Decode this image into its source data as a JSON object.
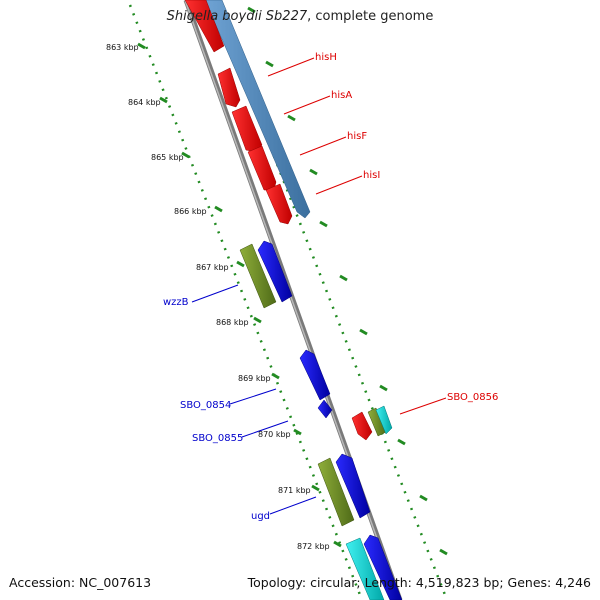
{
  "title": {
    "organism": "Shigella boydii Sb227",
    "suffix": ", complete genome"
  },
  "footer": {
    "accession": "Accession: NC_007613",
    "topology": "Topology: circular; Length: 4,519,823 bp; Genes: 4,246"
  },
  "ruler": {
    "ticks": [
      "863 kbp",
      "864 kbp",
      "865 kbp",
      "866 kbp",
      "867 kbp",
      "868 kbp",
      "869 kbp",
      "870 kbp",
      "871 kbp",
      "872 kbp"
    ]
  },
  "genes": {
    "forward": [
      {
        "label": "hisH",
        "color": "#ff0000"
      },
      {
        "label": "hisA",
        "color": "#ff0000"
      },
      {
        "label": "hisF",
        "color": "#ff0000"
      },
      {
        "label": "hisI",
        "color": "#ff0000"
      },
      {
        "label": "SBO_0856",
        "color": "#ff0000"
      }
    ],
    "reverse": [
      {
        "label": "wzzB",
        "color": "#0000cc"
      },
      {
        "label": "SBO_0854",
        "color": "#0000cc"
      },
      {
        "label": "SBO_0855",
        "color": "#0000cc"
      },
      {
        "label": "ugd",
        "color": "#0000cc"
      }
    ]
  },
  "colors": {
    "red_gene": "#ff0000",
    "blue_gene": "#0000ee",
    "green_gene": "#6b8e23",
    "cyan_gene": "#00cccc",
    "steel_blue_bar": "#4682b4",
    "backbone": "#808080",
    "dots": "#228b22"
  }
}
